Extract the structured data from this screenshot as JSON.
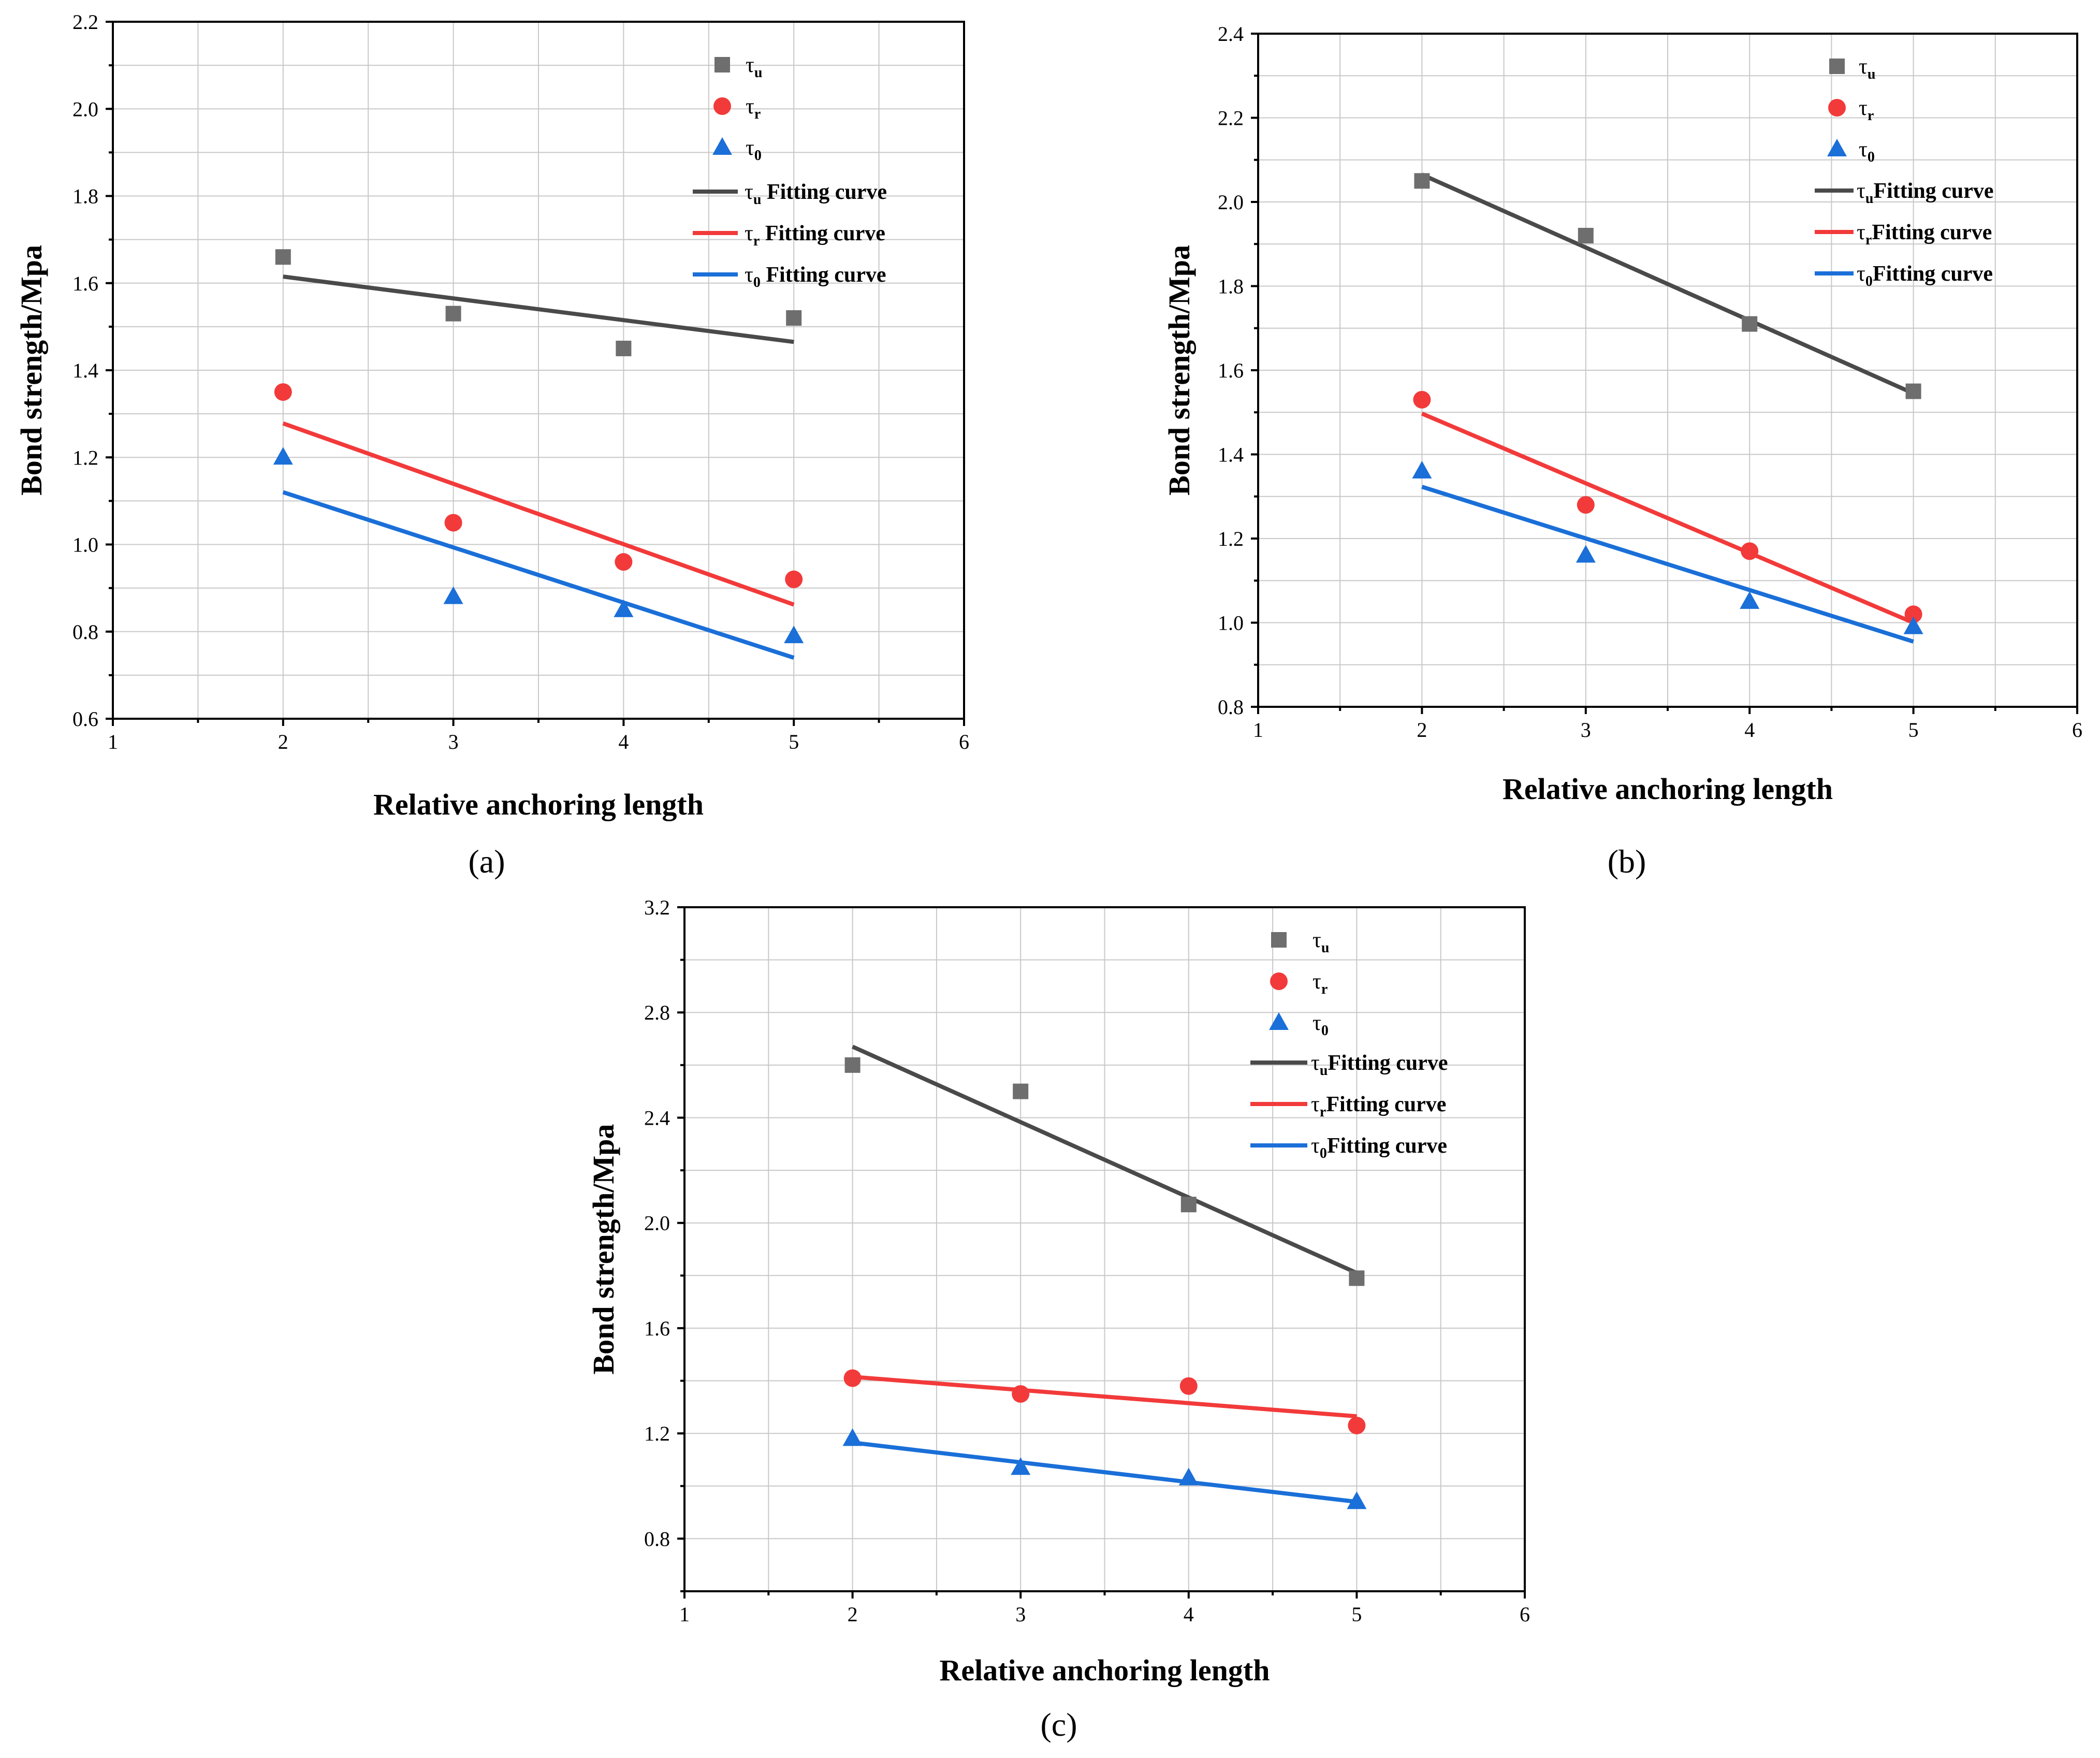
{
  "colors": {
    "tau_u": "#6e6e6e",
    "tau_u_line": "#4a4a4a",
    "tau_r": "#f23a3a",
    "tau_0": "#1a6fd8",
    "grid": "#c8c8c8",
    "axis": "#000000"
  },
  "legend_labels": {
    "marker_u_sub": "u",
    "marker_r_sub": "r",
    "marker_0_sub": "0",
    "tau": "τ",
    "fit_text_spaced": " Fitting curve",
    "fit_text_tight": "Fitting curve"
  },
  "chart_data": [
    {
      "id": "a",
      "caption": "(a)",
      "type": "scatter",
      "xlabel": "Relative anchoring length",
      "ylabel": "Bond strength/Mpa",
      "xlim": [
        1,
        6
      ],
      "ylim": [
        0.6,
        2.2
      ],
      "xticks": [
        "1",
        "2",
        "3",
        "4",
        "5",
        "6"
      ],
      "yticks": [
        "0.6",
        "0.8",
        "1.0",
        "1.2",
        "1.4",
        "1.6",
        "1.8",
        "2.0",
        "2.2"
      ],
      "series": [
        {
          "name": "τu",
          "marker": "square",
          "x": [
            2,
            3,
            4,
            5
          ],
          "values": [
            1.66,
            1.53,
            1.45,
            1.52
          ]
        },
        {
          "name": "τr",
          "marker": "circle",
          "x": [
            2,
            3,
            4,
            5
          ],
          "values": [
            1.35,
            1.05,
            0.96,
            0.92
          ]
        },
        {
          "name": "τ0",
          "marker": "triangle",
          "x": [
            2,
            3,
            4,
            5
          ],
          "values": [
            1.2,
            0.88,
            0.85,
            0.79
          ]
        }
      ],
      "fits": [
        {
          "name": "τu Fitting curve",
          "x": [
            2,
            5
          ],
          "values": [
            1.615,
            1.465
          ]
        },
        {
          "name": "τr Fitting curve",
          "x": [
            2,
            5
          ],
          "values": [
            1.278,
            0.862
          ]
        },
        {
          "name": "τ0 Fitting curve",
          "x": [
            2,
            5
          ],
          "values": [
            1.12,
            0.74
          ]
        }
      ],
      "legend": [
        "τu",
        "τr",
        "τ0",
        "τu Fitting curve",
        "τr Fitting curve",
        "τ0 Fitting curve"
      ]
    },
    {
      "id": "b",
      "caption": "(b)",
      "type": "scatter",
      "xlabel": "Relative anchoring length",
      "ylabel": "Bond strength/Mpa",
      "xlim": [
        1,
        6
      ],
      "ylim": [
        0.8,
        2.4
      ],
      "xticks": [
        "1",
        "2",
        "3",
        "4",
        "5",
        "6"
      ],
      "yticks": [
        "0.8",
        "1.0",
        "1.2",
        "1.4",
        "1.6",
        "1.8",
        "2.0",
        "2.2",
        "2.4"
      ],
      "series": [
        {
          "name": "τu",
          "marker": "square",
          "x": [
            2,
            3,
            4,
            5
          ],
          "values": [
            2.05,
            1.92,
            1.71,
            1.55
          ]
        },
        {
          "name": "τr",
          "marker": "circle",
          "x": [
            2,
            3,
            4,
            5
          ],
          "values": [
            1.53,
            1.28,
            1.17,
            1.02
          ]
        },
        {
          "name": "τ0",
          "marker": "triangle",
          "x": [
            2,
            3,
            4,
            5
          ],
          "values": [
            1.36,
            1.16,
            1.05,
            0.99
          ]
        }
      ],
      "fits": [
        {
          "name": "τuFitting curve",
          "x": [
            2,
            5
          ],
          "values": [
            2.065,
            1.545
          ]
        },
        {
          "name": "τrFitting curve",
          "x": [
            2,
            5
          ],
          "values": [
            1.497,
            1.0
          ]
        },
        {
          "name": "τ0Fitting curve",
          "x": [
            2,
            5
          ],
          "values": [
            1.323,
            0.955
          ]
        }
      ],
      "legend": [
        "τu",
        "τr",
        "τ0",
        "τuFitting curve",
        "τrFitting curve",
        "τ0Fitting curve"
      ]
    },
    {
      "id": "c",
      "caption": "(c)",
      "type": "scatter",
      "xlabel": "Relative anchoring length",
      "ylabel": "Bond strength/Mpa",
      "xlim": [
        1,
        6
      ],
      "ylim": [
        0.6,
        3.2
      ],
      "xticks": [
        "1",
        "2",
        "3",
        "4",
        "5",
        "6"
      ],
      "yticks": [
        "0.8",
        "1.2",
        "1.6",
        "2.0",
        "2.4",
        "2.8",
        "3.2"
      ],
      "series": [
        {
          "name": "τu",
          "marker": "square",
          "x": [
            2,
            3,
            4,
            5
          ],
          "values": [
            2.6,
            2.5,
            2.07,
            1.79
          ]
        },
        {
          "name": "τr",
          "marker": "circle",
          "x": [
            2,
            3,
            4,
            5
          ],
          "values": [
            1.41,
            1.35,
            1.38,
            1.23
          ]
        },
        {
          "name": "τ0",
          "marker": "triangle",
          "x": [
            2,
            3,
            4,
            5
          ],
          "values": [
            1.18,
            1.07,
            1.03,
            0.94
          ]
        }
      ],
      "fits": [
        {
          "name": "τuFitting curve",
          "x": [
            2,
            5
          ],
          "values": [
            2.67,
            1.81
          ]
        },
        {
          "name": "τrFitting curve",
          "x": [
            2,
            5
          ],
          "values": [
            1.415,
            1.265
          ]
        },
        {
          "name": "τ0Fitting curve",
          "x": [
            2,
            5
          ],
          "values": [
            1.165,
            0.94
          ]
        }
      ],
      "legend": [
        "τu",
        "τr",
        "τ0",
        "τuFitting curve",
        "τrFitting curve",
        "τ0Fitting curve"
      ]
    }
  ]
}
